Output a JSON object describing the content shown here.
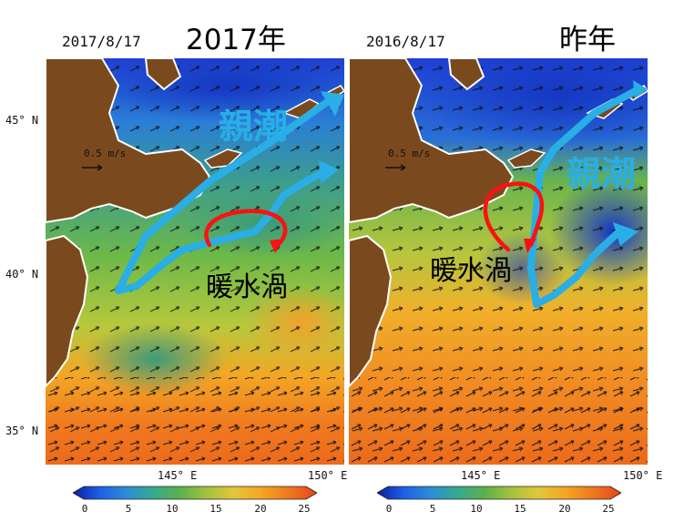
{
  "left_panel": {
    "date": "2017/8/17",
    "title": "2017年",
    "annotations": {
      "current": "親潮",
      "eddy": "暖水渦"
    },
    "scale_label": "0.5 m/s"
  },
  "right_panel": {
    "date": "2016/8/17",
    "title": "昨年",
    "annotations": {
      "current": "親潮",
      "eddy": "暖水渦"
    },
    "scale_label": "0.5 m/s"
  },
  "axes": {
    "lat_labels": [
      "45° N",
      "40° N",
      "35° N"
    ],
    "lon_labels": [
      "145° E",
      "150° E"
    ]
  },
  "colorbar": {
    "ticks": [
      "0",
      "5",
      "10",
      "15",
      "20",
      "25"
    ],
    "range": [
      0,
      25
    ],
    "colors": [
      "#0a1e9e",
      "#1f5ee6",
      "#2a8fd6",
      "#36a98f",
      "#5cb04a",
      "#a6c23c",
      "#e2c63a",
      "#f5a623",
      "#f07a1e",
      "#e5451b"
    ]
  },
  "colors": {
    "land": "#7a4a1e",
    "oyashio_arrow": "#29aee6",
    "eddy_arrow": "#ff1010"
  }
}
